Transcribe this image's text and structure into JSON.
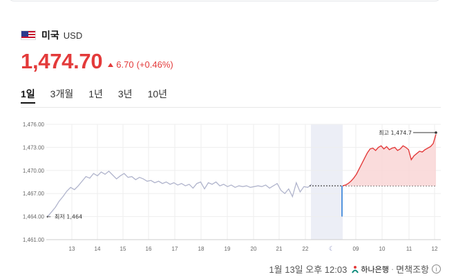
{
  "currency": {
    "country": "미국",
    "code": "USD",
    "price": "1,474.70",
    "change": "6.70",
    "change_pct": "(+0.46%)",
    "color_up": "#e33a3a"
  },
  "tabs": [
    {
      "label": "1일",
      "active": true
    },
    {
      "label": "3개월",
      "active": false
    },
    {
      "label": "1년",
      "active": false
    },
    {
      "label": "3년",
      "active": false
    },
    {
      "label": "10년",
      "active": false
    }
  ],
  "chart_data": {
    "type": "line",
    "y_ticks": [
      "1,476.00",
      "1,473.00",
      "1,470.00",
      "1,467.00",
      "1,464.00",
      "1,461.00"
    ],
    "ylim": [
      1461,
      1476
    ],
    "x_ticks": [
      "13",
      "14",
      "15",
      "16",
      "17",
      "18",
      "19",
      "20",
      "21",
      "22",
      "09",
      "10",
      "11",
      "12"
    ],
    "reference_value": 1468.0,
    "annotations": {
      "high": "최고 1,474.7",
      "low": "최저 1,464"
    },
    "series": [
      {
        "segment": "previous",
        "color": "#b0b4cc",
        "values": [
          1464.0,
          1464.6,
          1465.2,
          1466.0,
          1466.6,
          1467.3,
          1467.8,
          1467.5,
          1468.0,
          1468.6,
          1469.2,
          1469.0,
          1469.6,
          1469.3,
          1469.8,
          1469.5,
          1469.9,
          1469.4,
          1468.9,
          1469.3,
          1469.6,
          1469.1,
          1469.2,
          1468.8,
          1469.1,
          1468.9,
          1468.6,
          1468.7,
          1468.4,
          1468.6,
          1468.3,
          1468.5,
          1468.2,
          1468.4,
          1468.1,
          1468.3,
          1468.0,
          1468.2,
          1467.7,
          1468.3,
          1468.5,
          1467.6,
          1468.4,
          1468.2,
          1468.5,
          1468.0,
          1468.2,
          1467.9,
          1468.1,
          1467.8,
          1468.0,
          1467.9,
          1468.0,
          1467.8,
          1467.9,
          1468.0,
          1467.9,
          1468.1,
          1467.7,
          1468.0,
          1468.3,
          1467.4,
          1467.0,
          1467.6,
          1466.6,
          1468.4,
          1467.2,
          1467.9,
          1467.8,
          1468.2
        ]
      },
      {
        "segment": "today",
        "color": "#e33a3a",
        "values": [
          1468.0,
          1468.1,
          1468.3,
          1468.6,
          1469.0,
          1469.5,
          1470.2,
          1470.9,
          1471.6,
          1472.3,
          1472.8,
          1472.9,
          1472.6,
          1473.0,
          1473.2,
          1472.8,
          1473.1,
          1472.7,
          1472.9,
          1473.0,
          1472.6,
          1472.8,
          1473.2,
          1473.0,
          1472.7,
          1471.4,
          1471.9,
          1472.2,
          1472.5,
          1472.4,
          1472.7,
          1472.9,
          1473.1,
          1473.5,
          1474.7
        ]
      }
    ],
    "current_marker": {
      "value": 1464.0,
      "color": "#2f7fd8"
    }
  },
  "footer": {
    "date": "1월 13일 오후 12:03",
    "bank": "하나은행",
    "disclaimer": "면책조항"
  }
}
